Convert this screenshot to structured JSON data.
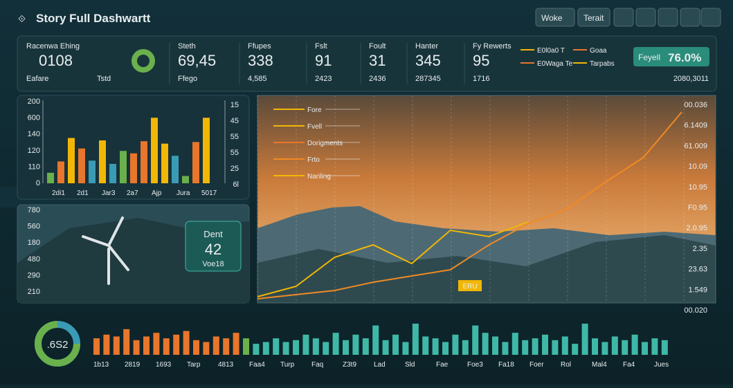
{
  "header": {
    "title": "Story Full Dashwartt",
    "buttons": [
      "Woke",
      "Terait"
    ]
  },
  "kpis": [
    {
      "label": "Racenwa Ehing",
      "value": "0108",
      "sub": "Eafare",
      "extra": "Tstd"
    },
    {
      "label": "Steth",
      "value": "69,45",
      "sub": "Ffego"
    },
    {
      "label": "Ffupes",
      "value": "338",
      "sub": "4,585"
    },
    {
      "label": "Fslt",
      "value": "91",
      "sub": "2423"
    },
    {
      "label": "Foult",
      "value": "31",
      "sub": "2436"
    },
    {
      "label": "Hanter",
      "value": "345",
      "sub": "287345"
    },
    {
      "label": "Fy Rewerts",
      "value": "95",
      "sub": "1716"
    }
  ],
  "top_legend": [
    "E0l0a0 T",
    "Goaa",
    "E0Waga Te",
    "Tarpabs"
  ],
  "badge": {
    "label": "Feyell",
    "value": "76.0%",
    "sub": "2080,3011"
  },
  "bar_chart": {
    "type": "bar",
    "ylim": [
      0,
      100
    ],
    "y_labels": [
      "200",
      "600",
      "140",
      "120",
      "110",
      "0"
    ],
    "y2_labels": [
      "15",
      "45",
      "55",
      "55",
      "25",
      "6l"
    ],
    "x_labels": [
      "2di1",
      "2d1",
      "Jar3",
      "2a7",
      "Ajp",
      "Jura",
      "5017"
    ],
    "values": [
      13,
      27,
      56,
      43,
      28,
      53,
      24,
      40,
      37,
      52,
      81,
      49,
      34,
      9,
      51,
      81
    ],
    "colors": [
      "#6ab04c",
      "#e8762c",
      "#f2b705",
      "#e8762c",
      "#3a9bb5",
      "#f2b705",
      "#3a9bb5",
      "#6ab04c",
      "#e8762c",
      "#e8762c",
      "#f2b705",
      "#f2b705",
      "#3a9bb5",
      "#6ab04c",
      "#e8762c",
      "#f2b705"
    ]
  },
  "wind_panel": {
    "y_labels": [
      "780",
      "560",
      "180",
      "480",
      "290",
      "210"
    ],
    "card": {
      "label": "Dent",
      "value": "42",
      "sub": "Voe18"
    }
  },
  "line_chart": {
    "type": "line",
    "ylim": [
      0,
      100
    ],
    "legend": [
      "Fore",
      "Fvell",
      "Dorigments",
      "Frto",
      "Nariling"
    ],
    "y_labels": [
      "00.036",
      "6.1409",
      "61.009",
      "10.09",
      "10.95",
      "F0.95",
      "2.0.95",
      "2.35",
      "23.63",
      "1.549",
      "00.020"
    ],
    "annotation": "ERU",
    "series": [
      {
        "color": "#f08a24",
        "values": [
          2,
          4,
          6,
          10,
          13,
          16,
          28,
          38,
          45,
          58,
          70,
          92
        ]
      },
      {
        "color": "#f2b705",
        "values": [
          3,
          8,
          22,
          28,
          19,
          35,
          32,
          39,
          null,
          null,
          null,
          null
        ]
      }
    ]
  },
  "bottom_chart": {
    "type": "bar",
    "ylim": [
      0,
      100
    ],
    "donut": ".6S2",
    "x_labels": [
      "1b13",
      "2819",
      "1693",
      "Tarp",
      "4813",
      "Faa4",
      "Turp",
      "Faq",
      "Z3t9",
      "Lad",
      "Sld",
      "Fae",
      "Foe3",
      "Fa18",
      "Foer",
      "Rol",
      "Mal4",
      "Fa4",
      "Jues"
    ],
    "groups": [
      {
        "color": "#e8762c",
        "values": [
          45,
          55,
          50,
          70,
          40,
          50,
          60,
          45,
          55,
          65,
          40,
          35,
          50,
          45,
          60
        ]
      },
      {
        "color": "#6ab04c",
        "values": [
          45
        ]
      },
      {
        "color": "#3fb8a8",
        "values": [
          30,
          35,
          45,
          35,
          40,
          55,
          45,
          35,
          60,
          40,
          55,
          45,
          80,
          40,
          55,
          35,
          85,
          50,
          45,
          35,
          55,
          40,
          80,
          60,
          50,
          35,
          60,
          40,
          45,
          55,
          40,
          50,
          30,
          85,
          45,
          35,
          50,
          40,
          55,
          35,
          45,
          40
        ]
      }
    ]
  }
}
